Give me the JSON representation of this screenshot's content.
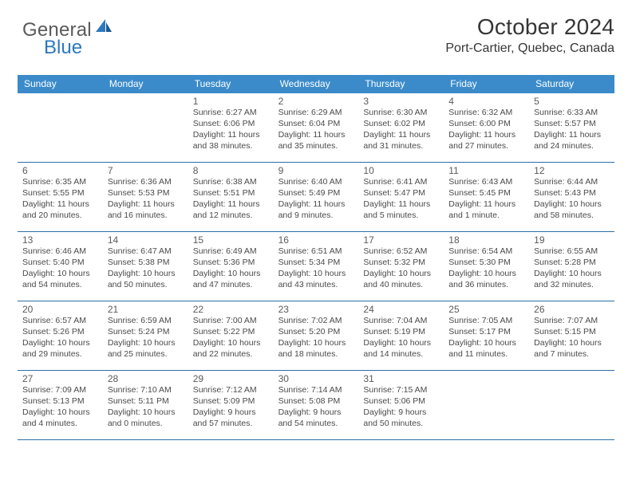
{
  "logo": {
    "word1": "General",
    "word2": "Blue",
    "accent_color": "#2c78bf",
    "text_color": "#5a5a5a"
  },
  "title": "October 2024",
  "location": "Port-Cartier, Quebec, Canada",
  "colors": {
    "header_bg": "#3b8bca",
    "header_text": "#ffffff",
    "cell_text": "#4a4a4a",
    "daynum_text": "#5a5a5a",
    "week_border": "#2d6ea8",
    "page_bg": "#ffffff"
  },
  "day_names": [
    "Sunday",
    "Monday",
    "Tuesday",
    "Wednesday",
    "Thursday",
    "Friday",
    "Saturday"
  ],
  "weeks": [
    [
      null,
      null,
      {
        "n": "1",
        "sr": "6:27 AM",
        "ss": "6:06 PM",
        "dl": "11 hours and 38 minutes."
      },
      {
        "n": "2",
        "sr": "6:29 AM",
        "ss": "6:04 PM",
        "dl": "11 hours and 35 minutes."
      },
      {
        "n": "3",
        "sr": "6:30 AM",
        "ss": "6:02 PM",
        "dl": "11 hours and 31 minutes."
      },
      {
        "n": "4",
        "sr": "6:32 AM",
        "ss": "6:00 PM",
        "dl": "11 hours and 27 minutes."
      },
      {
        "n": "5",
        "sr": "6:33 AM",
        "ss": "5:57 PM",
        "dl": "11 hours and 24 minutes."
      }
    ],
    [
      {
        "n": "6",
        "sr": "6:35 AM",
        "ss": "5:55 PM",
        "dl": "11 hours and 20 minutes."
      },
      {
        "n": "7",
        "sr": "6:36 AM",
        "ss": "5:53 PM",
        "dl": "11 hours and 16 minutes."
      },
      {
        "n": "8",
        "sr": "6:38 AM",
        "ss": "5:51 PM",
        "dl": "11 hours and 12 minutes."
      },
      {
        "n": "9",
        "sr": "6:40 AM",
        "ss": "5:49 PM",
        "dl": "11 hours and 9 minutes."
      },
      {
        "n": "10",
        "sr": "6:41 AM",
        "ss": "5:47 PM",
        "dl": "11 hours and 5 minutes."
      },
      {
        "n": "11",
        "sr": "6:43 AM",
        "ss": "5:45 PM",
        "dl": "11 hours and 1 minute."
      },
      {
        "n": "12",
        "sr": "6:44 AM",
        "ss": "5:43 PM",
        "dl": "10 hours and 58 minutes."
      }
    ],
    [
      {
        "n": "13",
        "sr": "6:46 AM",
        "ss": "5:40 PM",
        "dl": "10 hours and 54 minutes."
      },
      {
        "n": "14",
        "sr": "6:47 AM",
        "ss": "5:38 PM",
        "dl": "10 hours and 50 minutes."
      },
      {
        "n": "15",
        "sr": "6:49 AM",
        "ss": "5:36 PM",
        "dl": "10 hours and 47 minutes."
      },
      {
        "n": "16",
        "sr": "6:51 AM",
        "ss": "5:34 PM",
        "dl": "10 hours and 43 minutes."
      },
      {
        "n": "17",
        "sr": "6:52 AM",
        "ss": "5:32 PM",
        "dl": "10 hours and 40 minutes."
      },
      {
        "n": "18",
        "sr": "6:54 AM",
        "ss": "5:30 PM",
        "dl": "10 hours and 36 minutes."
      },
      {
        "n": "19",
        "sr": "6:55 AM",
        "ss": "5:28 PM",
        "dl": "10 hours and 32 minutes."
      }
    ],
    [
      {
        "n": "20",
        "sr": "6:57 AM",
        "ss": "5:26 PM",
        "dl": "10 hours and 29 minutes."
      },
      {
        "n": "21",
        "sr": "6:59 AM",
        "ss": "5:24 PM",
        "dl": "10 hours and 25 minutes."
      },
      {
        "n": "22",
        "sr": "7:00 AM",
        "ss": "5:22 PM",
        "dl": "10 hours and 22 minutes."
      },
      {
        "n": "23",
        "sr": "7:02 AM",
        "ss": "5:20 PM",
        "dl": "10 hours and 18 minutes."
      },
      {
        "n": "24",
        "sr": "7:04 AM",
        "ss": "5:19 PM",
        "dl": "10 hours and 14 minutes."
      },
      {
        "n": "25",
        "sr": "7:05 AM",
        "ss": "5:17 PM",
        "dl": "10 hours and 11 minutes."
      },
      {
        "n": "26",
        "sr": "7:07 AM",
        "ss": "5:15 PM",
        "dl": "10 hours and 7 minutes."
      }
    ],
    [
      {
        "n": "27",
        "sr": "7:09 AM",
        "ss": "5:13 PM",
        "dl": "10 hours and 4 minutes."
      },
      {
        "n": "28",
        "sr": "7:10 AM",
        "ss": "5:11 PM",
        "dl": "10 hours and 0 minutes."
      },
      {
        "n": "29",
        "sr": "7:12 AM",
        "ss": "5:09 PM",
        "dl": "9 hours and 57 minutes."
      },
      {
        "n": "30",
        "sr": "7:14 AM",
        "ss": "5:08 PM",
        "dl": "9 hours and 54 minutes."
      },
      {
        "n": "31",
        "sr": "7:15 AM",
        "ss": "5:06 PM",
        "dl": "9 hours and 50 minutes."
      },
      null,
      null
    ]
  ],
  "labels": {
    "sunrise": "Sunrise:",
    "sunset": "Sunset:",
    "daylight": "Daylight:"
  }
}
